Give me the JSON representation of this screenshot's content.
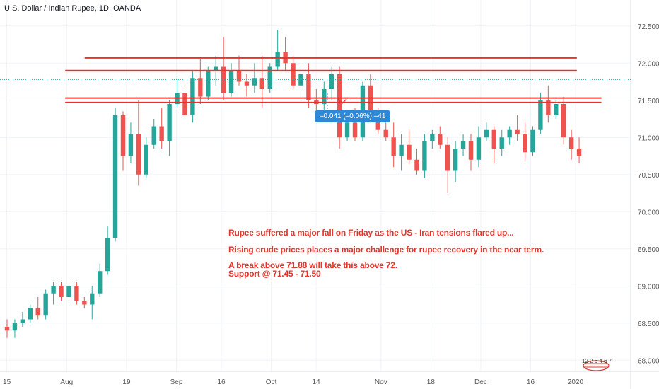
{
  "header": {
    "title": "U.S. Dollar / Indian Rupee, 1D, OANDA"
  },
  "tooltip": {
    "text": "–0.041 (–0.06%) –41"
  },
  "annotations": [
    "Rupee suffered a major fall on Friday as the US - Iran tensions flared up...",
    "Rising crude prices places a major challenge for rupee recovery in the near term.",
    "A break above 71.88 will take this above 72.",
    "Support @ 71.45 - 71.50"
  ],
  "badge": {
    "text": "12 2 6 4 6 7"
  },
  "colors": {
    "up": "#26a69a",
    "down": "#ef5350",
    "level": "#e8332a",
    "grid": "#f0f3fa",
    "current": "#26a69a"
  },
  "chart_data": {
    "type": "candlestick",
    "symbol": "USDINR",
    "ylim": [
      67.85,
      72.85
    ],
    "y_ticks": [
      "68.000",
      "68.500",
      "69.000",
      "69.500",
      "70.000",
      "70.500",
      "71.000",
      "71.500",
      "72.000",
      "72.500"
    ],
    "x_ticks": [
      {
        "label": "15",
        "index": 0
      },
      {
        "label": "Aug",
        "index": 12
      },
      {
        "label": "19",
        "index": 24
      },
      {
        "label": "Sep",
        "index": 34
      },
      {
        "label": "16",
        "index": 43
      },
      {
        "label": "Oct",
        "index": 53
      },
      {
        "label": "14",
        "index": 62
      },
      {
        "label": "Nov",
        "index": 75
      },
      {
        "label": "18",
        "index": 85
      },
      {
        "label": "Dec",
        "index": 95
      },
      {
        "label": "16",
        "index": 105
      },
      {
        "label": "2020",
        "index": 114
      }
    ],
    "current_price": 71.78,
    "levels": [
      {
        "y": 72.07,
        "x0": 16,
        "x1": 116
      },
      {
        "y": 71.9,
        "x0": 12,
        "x1": 116
      },
      {
        "y": 71.53,
        "x0": 12,
        "x1": 121
      },
      {
        "y": 71.47,
        "x0": 12,
        "x1": 121
      }
    ],
    "candles": [
      [
        68.45,
        68.55,
        68.3,
        68.4
      ],
      [
        68.4,
        68.55,
        68.3,
        68.5
      ],
      [
        68.5,
        68.65,
        68.45,
        68.55
      ],
      [
        68.55,
        68.75,
        68.5,
        68.7
      ],
      [
        68.7,
        68.85,
        68.55,
        68.6
      ],
      [
        68.6,
        68.95,
        68.55,
        68.9
      ],
      [
        68.9,
        69.05,
        68.75,
        69.0
      ],
      [
        69.0,
        69.05,
        68.8,
        68.85
      ],
      [
        68.85,
        69.05,
        68.8,
        69.0
      ],
      [
        69.0,
        69.05,
        68.75,
        68.8
      ],
      [
        68.8,
        68.85,
        68.7,
        68.75
      ],
      [
        68.75,
        69.0,
        68.55,
        68.9
      ],
      [
        68.9,
        69.3,
        68.85,
        69.2
      ],
      [
        69.2,
        69.8,
        69.15,
        69.65
      ],
      [
        69.65,
        71.4,
        69.6,
        71.3
      ],
      [
        71.3,
        71.35,
        70.55,
        70.75
      ],
      [
        70.75,
        71.2,
        70.65,
        71.05
      ],
      [
        71.05,
        71.5,
        70.35,
        70.5
      ],
      [
        70.5,
        71.0,
        70.45,
        70.9
      ],
      [
        70.9,
        71.25,
        70.85,
        71.15
      ],
      [
        71.15,
        71.4,
        70.85,
        70.95
      ],
      [
        70.95,
        71.5,
        70.75,
        71.45
      ],
      [
        71.45,
        71.8,
        71.4,
        71.6
      ],
      [
        71.6,
        71.65,
        71.25,
        71.3
      ],
      [
        71.3,
        71.9,
        71.2,
        71.8
      ],
      [
        71.8,
        72.05,
        71.45,
        71.55
      ],
      [
        71.55,
        71.95,
        71.5,
        71.9
      ],
      [
        71.9,
        72.1,
        71.7,
        71.95
      ],
      [
        71.95,
        72.35,
        71.5,
        71.6
      ],
      [
        71.6,
        72.0,
        71.55,
        71.9
      ],
      [
        71.9,
        72.1,
        71.7,
        71.75
      ],
      [
        71.75,
        71.85,
        71.55,
        71.7
      ],
      [
        71.7,
        72.0,
        71.6,
        71.8
      ],
      [
        71.8,
        72.1,
        71.4,
        71.65
      ],
      [
        71.65,
        72.0,
        71.6,
        71.95
      ],
      [
        71.95,
        72.45,
        71.9,
        72.15
      ],
      [
        72.15,
        72.35,
        71.9,
        72.0
      ],
      [
        72.0,
        72.1,
        71.65,
        71.7
      ],
      [
        71.7,
        71.95,
        71.5,
        71.85
      ],
      [
        71.85,
        72.0,
        71.4,
        71.5
      ],
      [
        71.5,
        71.65,
        71.3,
        71.45
      ],
      [
        71.45,
        71.75,
        71.3,
        71.65
      ],
      [
        71.65,
        71.95,
        71.5,
        71.85
      ],
      [
        71.85,
        71.95,
        70.85,
        71.0
      ],
      [
        71.0,
        71.35,
        70.95,
        71.2
      ],
      [
        71.2,
        71.4,
        70.95,
        71.0
      ],
      [
        71.0,
        71.75,
        70.95,
        71.7
      ],
      [
        71.7,
        71.85,
        71.2,
        71.35
      ],
      [
        71.35,
        71.4,
        71.05,
        71.1
      ],
      [
        71.1,
        71.2,
        70.95,
        71.0
      ],
      [
        71.0,
        71.2,
        70.6,
        70.75
      ],
      [
        70.75,
        71.05,
        70.55,
        70.9
      ],
      [
        70.9,
        71.1,
        70.65,
        70.7
      ],
      [
        70.7,
        70.85,
        70.5,
        70.55
      ],
      [
        70.55,
        71.05,
        70.45,
        70.95
      ],
      [
        70.95,
        71.1,
        70.85,
        71.05
      ],
      [
        71.05,
        71.15,
        70.85,
        70.9
      ],
      [
        70.9,
        71.0,
        70.25,
        70.55
      ],
      [
        70.55,
        70.95,
        70.4,
        70.85
      ],
      [
        70.85,
        71.05,
        70.75,
        70.95
      ],
      [
        70.95,
        71.05,
        70.55,
        70.7
      ],
      [
        70.7,
        71.15,
        70.6,
        71.0
      ],
      [
        71.0,
        71.2,
        70.95,
        71.1
      ],
      [
        71.1,
        71.15,
        70.65,
        70.85
      ],
      [
        70.85,
        71.1,
        70.75,
        71.0
      ],
      [
        71.0,
        71.15,
        70.9,
        71.1
      ],
      [
        71.1,
        71.3,
        70.95,
        71.05
      ],
      [
        71.05,
        71.2,
        70.7,
        70.8
      ],
      [
        70.8,
        71.15,
        70.75,
        71.1
      ],
      [
        71.1,
        71.6,
        71.05,
        71.5
      ],
      [
        71.5,
        71.7,
        71.2,
        71.3
      ],
      [
        71.3,
        71.5,
        71.25,
        71.45
      ],
      [
        71.45,
        71.55,
        70.9,
        71.0
      ],
      [
        71.0,
        71.1,
        70.7,
        70.85
      ],
      [
        70.85,
        71.0,
        70.65,
        70.75
      ]
    ]
  }
}
